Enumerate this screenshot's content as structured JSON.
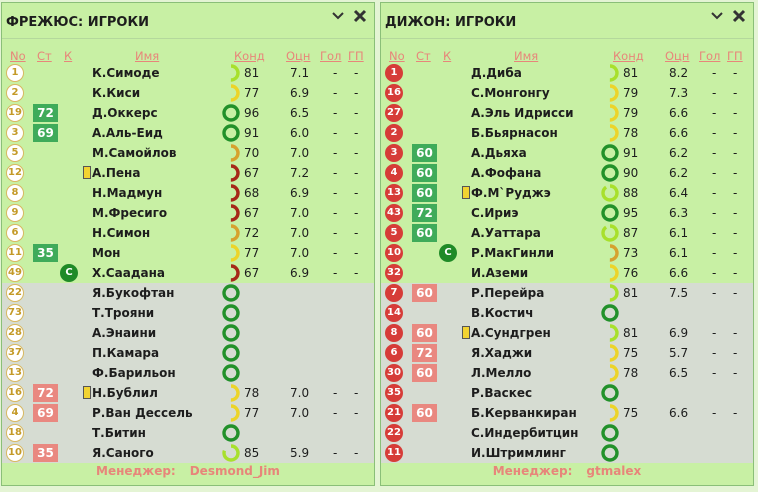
{
  "headers": {
    "no": "No",
    "st": "Ст",
    "k": "К",
    "name": "Имя",
    "kond": "Конд",
    "ocs": "Оцн",
    "gol": "Гол",
    "gp": "ГП"
  },
  "colors": {
    "ring_green": "#22912a",
    "ring_lime": "#a8e02c",
    "ring_yellow": "#ecd429",
    "ring_orange": "#d6a12e",
    "ring_red": "#a62818"
  },
  "icons": {
    "collapse": "chevron-down-icon",
    "close": "close-icon"
  },
  "panels": [
    {
      "title": "ФРЕЖЮС: ИГРОКИ",
      "num_style": "light",
      "manager_label": "Менеджер:",
      "manager_name": "Desmond_Jim",
      "players": [
        {
          "no": "1",
          "st": "",
          "k": "",
          "name": "К.Симоде",
          "ring": "lime",
          "arc": 0.5,
          "kond": "81",
          "ocs": "7.1",
          "gol": "-",
          "gp": "-",
          "res": false
        },
        {
          "no": "2",
          "st": "",
          "k": "",
          "name": "К.Киси",
          "ring": "yellow",
          "arc": 0.5,
          "kond": "77",
          "ocs": "6.9",
          "gol": "-",
          "gp": "-",
          "res": false
        },
        {
          "no": "19",
          "st": "72",
          "stc": "green",
          "k": "",
          "name": "Д.Оккерс",
          "ring": "green",
          "arc": 1,
          "kond": "96",
          "ocs": "6.5",
          "gol": "-",
          "gp": "-",
          "res": false
        },
        {
          "no": "3",
          "st": "69",
          "stc": "green",
          "k": "",
          "name": "А.Аль-Еид",
          "ring": "green",
          "arc": 1,
          "kond": "91",
          "ocs": "6.0",
          "gol": "-",
          "gp": "-",
          "res": false
        },
        {
          "no": "5",
          "st": "",
          "k": "",
          "name": "М.Самойлов",
          "ring": "orange",
          "arc": 0.5,
          "kond": "70",
          "ocs": "7.0",
          "gol": "-",
          "gp": "-",
          "res": false
        },
        {
          "no": "12",
          "st": "",
          "k": "",
          "card": true,
          "name": "А.Пена",
          "ring": "red",
          "arc": 0.5,
          "kond": "67",
          "ocs": "7.2",
          "gol": "-",
          "gp": "-",
          "res": false
        },
        {
          "no": "8",
          "st": "",
          "k": "",
          "name": "Н.Мадмун",
          "ring": "red",
          "arc": 0.5,
          "kond": "68",
          "ocs": "6.9",
          "gol": "-",
          "gp": "-",
          "res": false
        },
        {
          "no": "9",
          "st": "",
          "k": "",
          "name": "М.Фресиго",
          "ring": "red",
          "arc": 0.5,
          "kond": "67",
          "ocs": "7.0",
          "gol": "-",
          "gp": "-",
          "res": false
        },
        {
          "no": "6",
          "st": "",
          "k": "",
          "name": "Н.Симон",
          "ring": "orange",
          "arc": 0.5,
          "kond": "72",
          "ocs": "7.0",
          "gol": "-",
          "gp": "-",
          "res": false
        },
        {
          "no": "11",
          "st": "35",
          "stc": "green",
          "k": "",
          "name": "Мон",
          "ring": "yellow",
          "arc": 0.5,
          "kond": "77",
          "ocs": "7.0",
          "gol": "-",
          "gp": "-",
          "res": false
        },
        {
          "no": "49",
          "st": "",
          "k": "C",
          "name": "Х.Саадана",
          "ring": "red",
          "arc": 0.5,
          "kond": "67",
          "ocs": "6.9",
          "gol": "-",
          "gp": "-",
          "res": false
        },
        {
          "no": "22",
          "st": "",
          "k": "",
          "name": "Я.Букофтан",
          "ring": "green",
          "arc": 1,
          "kond": "",
          "ocs": "",
          "gol": "",
          "gp": "",
          "res": true
        },
        {
          "no": "73",
          "st": "",
          "k": "",
          "name": "Т.Трояни",
          "ring": "green",
          "arc": 1,
          "kond": "",
          "ocs": "",
          "gol": "",
          "gp": "",
          "res": true
        },
        {
          "no": "28",
          "st": "",
          "k": "",
          "name": "А.Энаини",
          "ring": "green",
          "arc": 1,
          "kond": "",
          "ocs": "",
          "gol": "",
          "gp": "",
          "res": true
        },
        {
          "no": "37",
          "st": "",
          "k": "",
          "name": "П.Камара",
          "ring": "green",
          "arc": 1,
          "kond": "",
          "ocs": "",
          "gol": "",
          "gp": "",
          "res": true
        },
        {
          "no": "13",
          "st": "",
          "k": "",
          "name": "Ф.Барильон",
          "ring": "green",
          "arc": 1,
          "kond": "",
          "ocs": "",
          "gol": "",
          "gp": "",
          "res": true
        },
        {
          "no": "16",
          "st": "72",
          "stc": "red",
          "k": "",
          "card": true,
          "name": "Н.Бублил",
          "ring": "yellow",
          "arc": 0.5,
          "kond": "78",
          "ocs": "7.0",
          "gol": "-",
          "gp": "-",
          "res": true
        },
        {
          "no": "4",
          "st": "69",
          "stc": "red",
          "k": "",
          "name": "Р.Ван Дессель",
          "ring": "yellow",
          "arc": 0.5,
          "kond": "77",
          "ocs": "7.0",
          "gol": "-",
          "gp": "-",
          "res": true
        },
        {
          "no": "18",
          "st": "",
          "k": "",
          "name": "Т.Битин",
          "ring": "green",
          "arc": 1,
          "kond": "",
          "ocs": "",
          "gol": "",
          "gp": "",
          "res": true
        },
        {
          "no": "10",
          "st": "35",
          "stc": "red",
          "k": "",
          "name": "Я.Саного",
          "ring": "lime",
          "arc": 0.8,
          "kond": "85",
          "ocs": "5.9",
          "gol": "-",
          "gp": "-",
          "res": true
        }
      ]
    },
    {
      "title": "ДИЖОН: ИГРОКИ",
      "num_style": "dark",
      "manager_label": "Менеджер:",
      "manager_name": "gtmalex",
      "players": [
        {
          "no": "1",
          "st": "",
          "k": "",
          "name": "Д.Диба",
          "ring": "lime",
          "arc": 0.5,
          "kond": "81",
          "ocs": "8.2",
          "gol": "-",
          "gp": "-",
          "res": false
        },
        {
          "no": "16",
          "st": "",
          "k": "",
          "name": "С.Монгонгу",
          "ring": "yellow",
          "arc": 0.5,
          "kond": "79",
          "ocs": "7.3",
          "gol": "-",
          "gp": "-",
          "res": false
        },
        {
          "no": "27",
          "st": "",
          "k": "",
          "name": "А.Эль Идрисси",
          "ring": "yellow",
          "arc": 0.5,
          "kond": "79",
          "ocs": "6.6",
          "gol": "-",
          "gp": "-",
          "res": false
        },
        {
          "no": "2",
          "st": "",
          "k": "",
          "name": "Б.Бьярнасон",
          "ring": "yellow",
          "arc": 0.5,
          "kond": "78",
          "ocs": "6.6",
          "gol": "-",
          "gp": "-",
          "res": false
        },
        {
          "no": "3",
          "st": "60",
          "stc": "green",
          "k": "",
          "name": "А.Дьяха",
          "ring": "green",
          "arc": 1,
          "kond": "91",
          "ocs": "6.2",
          "gol": "-",
          "gp": "-",
          "res": false
        },
        {
          "no": "4",
          "st": "60",
          "stc": "green",
          "k": "",
          "name": "А.Фофана",
          "ring": "green",
          "arc": 1,
          "kond": "90",
          "ocs": "6.2",
          "gol": "-",
          "gp": "-",
          "res": false
        },
        {
          "no": "13",
          "st": "60",
          "stc": "green",
          "k": "",
          "card": true,
          "name": "Ф.М`Руджэ",
          "ring": "lime",
          "arc": 0.9,
          "kond": "88",
          "ocs": "6.4",
          "gol": "-",
          "gp": "-",
          "res": false
        },
        {
          "no": "43",
          "st": "72",
          "stc": "green",
          "k": "",
          "name": "С.Ириэ",
          "ring": "green",
          "arc": 1,
          "kond": "95",
          "ocs": "6.3",
          "gol": "-",
          "gp": "-",
          "res": false
        },
        {
          "no": "5",
          "st": "60",
          "stc": "green",
          "k": "",
          "name": "А.Уаттара",
          "ring": "lime",
          "arc": 0.9,
          "kond": "87",
          "ocs": "6.1",
          "gol": "-",
          "gp": "-",
          "res": false
        },
        {
          "no": "10",
          "st": "",
          "k": "C",
          "name": "Р.МакГинли",
          "ring": "orange",
          "arc": 0.5,
          "kond": "73",
          "ocs": "6.1",
          "gol": "-",
          "gp": "-",
          "res": false
        },
        {
          "no": "32",
          "st": "",
          "k": "",
          "name": "И.Аземи",
          "ring": "yellow",
          "arc": 0.5,
          "kond": "76",
          "ocs": "6.6",
          "gol": "-",
          "gp": "-",
          "res": false
        },
        {
          "no": "7",
          "st": "60",
          "stc": "red",
          "k": "",
          "name": "Р.Перейра",
          "ring": "lime",
          "arc": 0.5,
          "kond": "81",
          "ocs": "7.5",
          "gol": "-",
          "gp": "-",
          "res": true
        },
        {
          "no": "14",
          "st": "",
          "k": "",
          "name": "В.Костич",
          "ring": "green",
          "arc": 1,
          "kond": "",
          "ocs": "",
          "gol": "",
          "gp": "",
          "res": true
        },
        {
          "no": "8",
          "st": "60",
          "stc": "red",
          "k": "",
          "card": true,
          "name": "А.Сундгрен",
          "ring": "lime",
          "arc": 0.5,
          "kond": "81",
          "ocs": "6.9",
          "gol": "-",
          "gp": "-",
          "res": true
        },
        {
          "no": "6",
          "st": "72",
          "stc": "red",
          "k": "",
          "name": "Я.Хаджи",
          "ring": "yellow",
          "arc": 0.5,
          "kond": "75",
          "ocs": "5.7",
          "gol": "-",
          "gp": "-",
          "res": true
        },
        {
          "no": "30",
          "st": "60",
          "stc": "red",
          "k": "",
          "name": "Л.Мелло",
          "ring": "yellow",
          "arc": 0.5,
          "kond": "78",
          "ocs": "6.5",
          "gol": "-",
          "gp": "-",
          "res": true
        },
        {
          "no": "35",
          "st": "",
          "k": "",
          "name": "Р.Васкес",
          "ring": "green",
          "arc": 1,
          "kond": "",
          "ocs": "",
          "gol": "",
          "gp": "",
          "res": true
        },
        {
          "no": "21",
          "st": "60",
          "stc": "red",
          "k": "",
          "name": "Б.Керванкиран",
          "ring": "yellow",
          "arc": 0.5,
          "kond": "75",
          "ocs": "6.6",
          "gol": "-",
          "gp": "-",
          "res": true
        },
        {
          "no": "22",
          "st": "",
          "k": "",
          "name": "С.Индербитцин",
          "ring": "green",
          "arc": 1,
          "kond": "",
          "ocs": "",
          "gol": "",
          "gp": "",
          "res": true
        },
        {
          "no": "11",
          "st": "",
          "k": "",
          "name": "И.Штримлинг",
          "ring": "green",
          "arc": 1,
          "kond": "",
          "ocs": "",
          "gol": "",
          "gp": "",
          "res": true
        }
      ]
    }
  ]
}
